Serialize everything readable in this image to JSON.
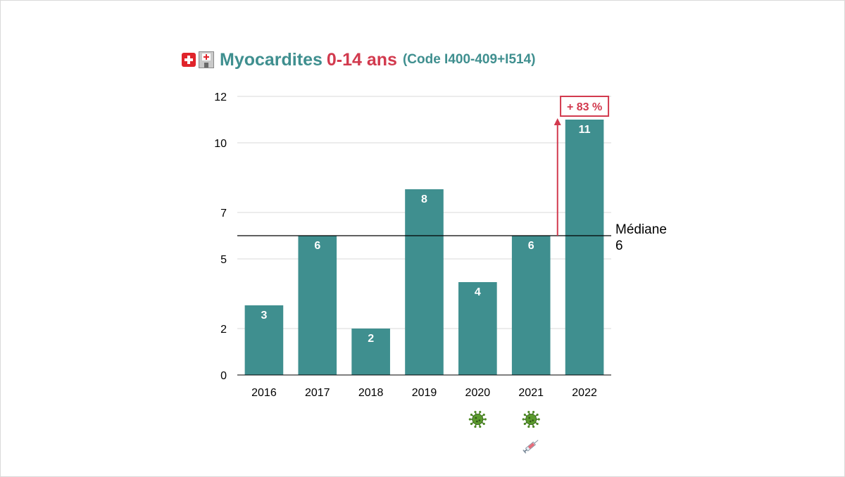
{
  "title": {
    "icons": [
      "swiss-flag-icon",
      "hospital-icon"
    ],
    "main": "Myocardites",
    "age": "0-14 ans",
    "code": "(Code I400-409+I514)"
  },
  "colors": {
    "bar": "#3f8f8f",
    "accent": "#d23a4e",
    "grid": "#d9d9d9",
    "median": "#000000"
  },
  "chart_data": {
    "type": "bar",
    "categories": [
      "2016",
      "2017",
      "2018",
      "2019",
      "2020",
      "2021",
      "2022"
    ],
    "values": [
      3,
      6,
      2,
      8,
      4,
      6,
      11
    ],
    "ylim": [
      0,
      12
    ],
    "yticks": [
      0,
      2,
      5,
      7,
      10,
      12
    ],
    "grid": true,
    "reference_line": {
      "label": "Médiane",
      "value": 6
    },
    "annotation": {
      "label": "+ 83 %",
      "from_value": 6,
      "to_value": 11,
      "category": "2022"
    },
    "category_icons": [
      {
        "category": "2020",
        "icons": [
          "virus-icon"
        ]
      },
      {
        "category": "2021",
        "icons": [
          "virus-icon",
          "syringe-icon"
        ]
      }
    ]
  }
}
